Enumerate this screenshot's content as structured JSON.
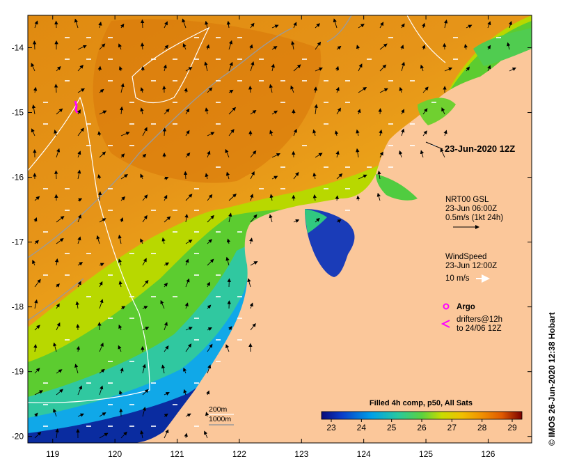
{
  "map": {
    "xaxis": {
      "ticks": [
        "119",
        "120",
        "121",
        "122",
        "123",
        "124",
        "125",
        "126"
      ],
      "lon_values": [
        119,
        120,
        121,
        122,
        123,
        124,
        125,
        126
      ],
      "range": [
        118.6,
        126.7
      ]
    },
    "yaxis": {
      "ticks": [
        "-14",
        "-15",
        "-16",
        "-17",
        "-18",
        "-19",
        "-20"
      ],
      "lat_values": [
        -14,
        -15,
        -16,
        -17,
        -18,
        -19,
        -20
      ],
      "range": [
        -20.1,
        -13.5
      ]
    },
    "timestamp_label": "23-Jun-2020 12Z",
    "colors": {
      "land": "#fbc79a",
      "cold": "#101a8c",
      "mid": "#33cc33",
      "warm": "#e08a00"
    }
  },
  "current_legend": {
    "source": "NRT00 GSL",
    "time": "23-Jun 06:00Z",
    "scale": "0.5m/s (1kt 24h)"
  },
  "wind_legend": {
    "title": "WindSpeed",
    "time": "23-Jun 12:00Z",
    "scale": "10 m/s"
  },
  "argo_legend": {
    "argo": "Argo",
    "drifters_line1": "drifters@12h",
    "drifters_line2": "to 24/06 12Z"
  },
  "isobaths": {
    "line1": "200m",
    "line2": "1000m"
  },
  "colorbar": {
    "title": "Filled 4h comp, p50, All Sats",
    "ticks": [
      "23",
      "24",
      "25",
      "26",
      "27",
      "28",
      "29"
    ],
    "values": [
      23,
      24,
      25,
      26,
      27,
      28,
      29
    ],
    "colors": [
      "#0a0a78",
      "#0a3cc8",
      "#00a0e8",
      "#28c8a0",
      "#5ad240",
      "#c8dc00",
      "#f0c000",
      "#f09000",
      "#e05a00",
      "#b41400",
      "#7a0000"
    ]
  },
  "credit": "© IMOS 26-Jun-2020 12:38 Hobart"
}
